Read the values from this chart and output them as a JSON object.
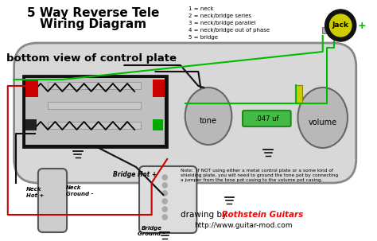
{
  "title_line1": "5 Way Reverse Tele",
  "title_line2": "Wiring Diagram",
  "subtitle": "bottom view of control plate",
  "legend": [
    "1 = neck",
    "2 = neck/bridge series",
    "3 = neck/bridge parallel",
    "4 = neck/bridge out of phase",
    "5 = bridge"
  ],
  "jack_label": "Jack",
  "tone_label": "tone",
  "volume_label": "volume",
  "cap_label": ".047 uf",
  "bridge_hot": "Bridge Hot +",
  "neck_ground": "Neck\nGround -",
  "bridge_ground": "Bridge\nGround -",
  "neck_hot": "Neck\nHot +",
  "note_text": "Note:  If NOT using either a metal control plate or a some kind of\nshielding plate, you will need to ground the tone pot by connecting\na jumper from the tone pot casing to the volume pot casing.",
  "drawing_by": "drawing by ",
  "company": "Rothstein Guitars",
  "url": "http://www.guitar-mod.com",
  "bg_color": "#ffffff",
  "plate_color": "#d8d8d8",
  "plate_outline": "#888888",
  "switch_bg": "#c0c0c0",
  "bar_color": "#b8b8b8",
  "pot_color": "#b8b8b8",
  "pot_outline": "#666666",
  "cap_color": "#44bb44",
  "cap_outline": "#228822",
  "red_block": "#cc0000",
  "green_block": "#00aa00",
  "black_block": "#222222",
  "jack_black": "#111111",
  "jack_yellow": "#cccc00",
  "wire_black": "#111111",
  "wire_red": "#cc0000",
  "wire_green": "#00bb00"
}
